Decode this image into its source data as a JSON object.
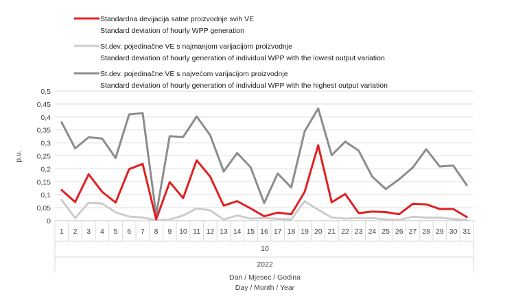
{
  "chart_data": {
    "type": "line",
    "ylabel": "p.u.",
    "xlabel_line1": "Dan / Mjesec / Godina",
    "xlabel_line2": "Day / Month / Year",
    "month_label": "10",
    "year_label": "2022",
    "ylim": [
      0,
      0.5
    ],
    "yticks": [
      "0",
      "0,05",
      "0,1",
      "0,15",
      "0,2",
      "0,25",
      "0,3",
      "0,35",
      "0,4",
      "0,45",
      "0,5"
    ],
    "categories": [
      "1",
      "2",
      "3",
      "4",
      "5",
      "6",
      "7",
      "8",
      "9",
      "10",
      "11",
      "12",
      "13",
      "14",
      "15",
      "16",
      "17",
      "18",
      "19",
      "20",
      "21",
      "22",
      "23",
      "24",
      "25",
      "26",
      "27",
      "28",
      "29",
      "30",
      "31"
    ],
    "legend_position": "top-left",
    "grid": "horizontal",
    "series": [
      {
        "name": "Standardna devijacija satne proizvodnje svih VE",
        "name_en": "Standard deviation of hourly WPP generation",
        "color": "#e02020",
        "values": [
          0.118,
          0.072,
          0.179,
          0.111,
          0.07,
          0.199,
          0.219,
          0.005,
          0.149,
          0.087,
          0.233,
          0.17,
          0.058,
          0.075,
          0.047,
          0.017,
          0.031,
          0.025,
          0.111,
          0.291,
          0.071,
          0.103,
          0.029,
          0.035,
          0.033,
          0.025,
          0.065,
          0.063,
          0.045,
          0.045,
          0.014
        ]
      },
      {
        "name": "St.dev. pojedinačne VE s najmanjom varijacijom proizvodnje",
        "name_en": "Standard deviation of hourly generation of individual WPP with the lowest output variation",
        "color": "#cccccc",
        "values": [
          0.08,
          0.01,
          0.069,
          0.066,
          0.032,
          0.016,
          0.012,
          0.002,
          0.004,
          0.02,
          0.047,
          0.04,
          0.004,
          0.02,
          0.008,
          0.01,
          0.007,
          0.005,
          0.075,
          0.042,
          0.012,
          0.008,
          0.01,
          0.01,
          0.005,
          0.003,
          0.015,
          0.012,
          0.012,
          0.006,
          0.003
        ]
      },
      {
        "name": "St.dev. pojedinačne VE s najvećom varijacijom proizvodnje",
        "name_en": "Standard deviation of hourly generation of individual WPP with the highest output variation",
        "color": "#8c8c8c",
        "values": [
          0.38,
          0.279,
          0.322,
          0.317,
          0.242,
          0.41,
          0.415,
          0.022,
          0.326,
          0.323,
          0.402,
          0.33,
          0.19,
          0.261,
          0.206,
          0.068,
          0.182,
          0.128,
          0.345,
          0.433,
          0.253,
          0.305,
          0.27,
          0.17,
          0.122,
          0.16,
          0.205,
          0.276,
          0.209,
          0.213,
          0.137
        ]
      }
    ]
  }
}
